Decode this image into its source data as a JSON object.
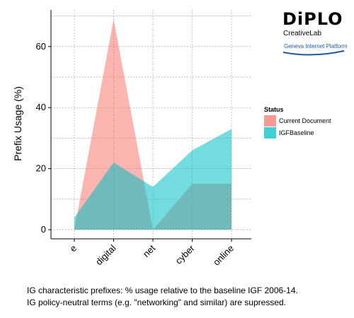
{
  "colors": {
    "current_document": "#f8766d",
    "igf_baseline": "#00bfc4",
    "overlap": "#b7a8a3",
    "logo_red": "#d9261c",
    "logo_blue": "#1c5aa0"
  },
  "logo": {
    "brand": "DiPLO",
    "sub": "CreativeLab",
    "platform": "Geneva Internet Platform"
  },
  "captions": [
    "IG characteristic prefixes: % usage relative to the baseline IGF 2006-14.",
    "IG policy-neutral terms (e.g. \"networking\" and similar) are supressed."
  ],
  "chart_data": {
    "type": "area",
    "categories": [
      "e",
      "digital",
      "net",
      "cyber",
      "online"
    ],
    "series": [
      {
        "name": "Current Document",
        "values": [
          0,
          69,
          0,
          15,
          15
        ]
      },
      {
        "name": "IGFBaseline",
        "values": [
          4,
          22,
          14,
          26,
          33
        ]
      }
    ],
    "title": "",
    "xlabel": "",
    "ylabel": "Prefix Usage (%)",
    "ylim": [
      -3,
      72
    ],
    "yticks": [
      0,
      20,
      40,
      60
    ],
    "legend": {
      "title": "Status",
      "position": "right"
    },
    "grid": true,
    "axis_sides": "left-bottom only (bracket frame)"
  }
}
